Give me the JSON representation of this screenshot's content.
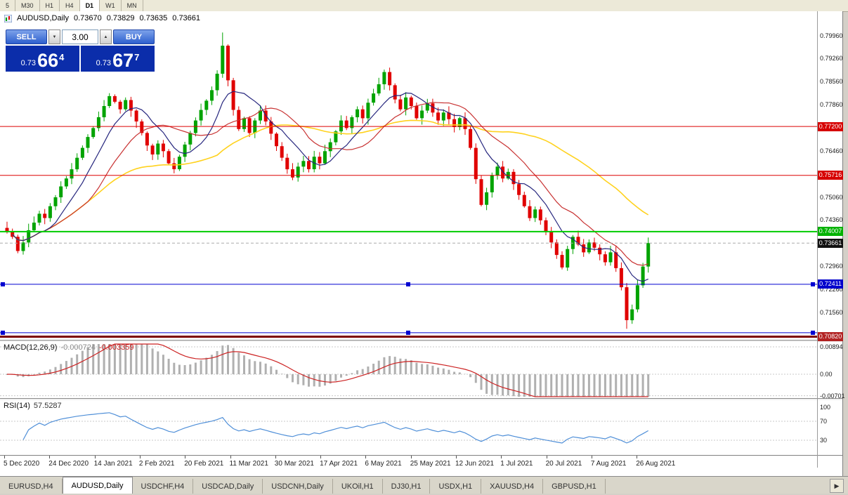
{
  "timeframe_bar": {
    "items": [
      "5",
      "M30",
      "H1",
      "H4",
      "D1",
      "W1",
      "MN"
    ],
    "active": "D1"
  },
  "header": {
    "symbol": "AUDUSD,Daily",
    "open": "0.73670",
    "high": "0.73829",
    "low": "0.73635",
    "close": "0.73661"
  },
  "trade_panel": {
    "sell_label": "SELL",
    "buy_label": "BUY",
    "volume": "3.00",
    "sell_price_prefix": "0.73",
    "sell_price_big": "66",
    "sell_price_sup": "4",
    "buy_price_prefix": "0.73",
    "buy_price_big": "67",
    "buy_price_sup": "7"
  },
  "icons": {
    "volume_down": "▼",
    "volume_up": "▲",
    "tab_scroll_right": "▶"
  },
  "price_axis": {
    "labels": [
      {
        "text": "0.79960",
        "price": 0.7996
      },
      {
        "text": "0.79260",
        "price": 0.7926
      },
      {
        "text": "0.78560",
        "price": 0.7856
      },
      {
        "text": "0.77860",
        "price": 0.7786
      },
      {
        "text": "0.76460",
        "price": 0.7646
      },
      {
        "text": "0.75060",
        "price": 0.7506
      },
      {
        "text": "0.74360",
        "price": 0.7436
      },
      {
        "text": "0.72960",
        "price": 0.7296
      },
      {
        "text": "0.72260",
        "price": 0.7226
      },
      {
        "text": "0.71560",
        "price": 0.7156
      }
    ],
    "tags": [
      {
        "text": "0.77200",
        "price": 0.772,
        "color": "#d60000"
      },
      {
        "text": "0.75716",
        "price": 0.75716,
        "color": "#d60000"
      },
      {
        "text": "0.74007",
        "price": 0.74007,
        "color": "#00b200"
      },
      {
        "text": "0.73661",
        "price": 0.73661,
        "color": "#111111"
      },
      {
        "text": "0.72411",
        "price": 0.72411,
        "color": "#0000cc"
      },
      {
        "text": "0.70820",
        "price": 0.7082,
        "color": "#b22222"
      }
    ]
  },
  "hlines": [
    {
      "price": 0.772,
      "color": "#dd0000",
      "w": 1,
      "handles": false
    },
    {
      "price": 0.75716,
      "color": "#dd0000",
      "w": 1,
      "handles": false
    },
    {
      "price": 0.74007,
      "color": "#00cc00",
      "w": 2,
      "handles": false
    },
    {
      "price": 0.72411,
      "color": "#0000d0",
      "w": 1,
      "handles": true
    },
    {
      "price": 0.7094,
      "color": "#0000d0",
      "w": 1,
      "handles": true
    },
    {
      "price": 0.7082,
      "color": "#7d0000",
      "w": 3,
      "handles": false
    }
  ],
  "indicators": {
    "macd": {
      "name": "MACD(12,26,9)",
      "value_main": "-0.000724",
      "value_signal": "-0.003359",
      "axis_labels": [
        {
          "text": "0.00894",
          "value": 0.00894
        },
        {
          "text": "0.00",
          "value": 0
        },
        {
          "text": "-0.00701",
          "value": -0.00701
        }
      ]
    },
    "rsi": {
      "name": "RSI(14)",
      "value": "57.5287",
      "axis_labels": [
        {
          "text": "100",
          "value": 100
        },
        {
          "text": "70",
          "value": 70
        },
        {
          "text": "30",
          "value": 30
        }
      ],
      "levels": [
        70,
        30
      ]
    }
  },
  "date_axis": [
    "5 Dec 2020",
    "24 Dec 2020",
    "14 Jan 2021",
    "2 Feb 2021",
    "20 Feb 2021",
    "11 Mar 2021",
    "30 Mar 2021",
    "17 Apr 2021",
    "6 May 2021",
    "25 May 2021",
    "12 Jun 2021",
    "1 Jul 2021",
    "20 Jul 2021",
    "7 Aug 2021",
    "26 Aug 2021"
  ],
  "bottom_tabs": {
    "tabs": [
      {
        "label": "EURUSD,H4",
        "active": false
      },
      {
        "label": "AUDUSD,Daily",
        "active": true
      },
      {
        "label": "USDCHF,H4",
        "active": false
      },
      {
        "label": "USDCAD,Daily",
        "active": false
      },
      {
        "label": "USDCNH,Daily",
        "active": false
      },
      {
        "label": "UKOil,H1",
        "active": false
      },
      {
        "label": "DJ30,H1",
        "active": false
      },
      {
        "label": "USDX,H1",
        "active": false
      },
      {
        "label": "XAUUSD,H4",
        "active": false
      },
      {
        "label": "GBPUSD,H1",
        "active": false
      }
    ]
  },
  "colors": {
    "bull": "#00a300",
    "bear": "#e00000",
    "macd_hist": "#b0b0b0",
    "macd_signal": "#cc2222",
    "rsi_line": "#4f8fd8",
    "trade_panel_blue": "#0b2daa",
    "button_blue": "#2d5fce"
  },
  "chart_data": {
    "type": "candlestick",
    "symbol": "AUDUSD",
    "timeframe": "Daily",
    "title": "AUDUSD,Daily",
    "ohlc_current": {
      "open": 0.7367,
      "high": 0.73829,
      "low": 0.73635,
      "close": 0.73661
    },
    "y_axis_range": [
      0.7081,
      0.8061
    ],
    "closes": [
      0.74,
      0.7385,
      0.7342,
      0.7368,
      0.7405,
      0.7428,
      0.7455,
      0.7442,
      0.7478,
      0.7505,
      0.7538,
      0.7562,
      0.759,
      0.7625,
      0.7655,
      0.7688,
      0.7715,
      0.7748,
      0.7782,
      0.7812,
      0.7795,
      0.7772,
      0.78,
      0.7768,
      0.7735,
      0.77,
      0.7662,
      0.7635,
      0.7668,
      0.7645,
      0.7608,
      0.759,
      0.7628,
      0.7665,
      0.77,
      0.7738,
      0.777,
      0.7798,
      0.783,
      0.788,
      0.7965,
      0.786,
      0.777,
      0.7712,
      0.7745,
      0.77,
      0.7738,
      0.7768,
      0.7735,
      0.7698,
      0.766,
      0.7625,
      0.759,
      0.7565,
      0.7598,
      0.7615,
      0.759,
      0.7628,
      0.7608,
      0.7645,
      0.7672,
      0.7705,
      0.7738,
      0.7715,
      0.7748,
      0.7772,
      0.7745,
      0.7792,
      0.782,
      0.7848,
      0.7885,
      0.7845,
      0.7802,
      0.7772,
      0.7808,
      0.7782,
      0.7745,
      0.7768,
      0.779,
      0.7762,
      0.7738,
      0.7762,
      0.7742,
      0.7718,
      0.7745,
      0.7712,
      0.7655,
      0.756,
      0.7482,
      0.752,
      0.7572,
      0.7598,
      0.7562,
      0.7582,
      0.7545,
      0.7512,
      0.7478,
      0.7442,
      0.7468,
      0.7435,
      0.7402,
      0.7368,
      0.733,
      0.7292,
      0.7348,
      0.7385,
      0.7362,
      0.7338,
      0.7368,
      0.7352,
      0.7332,
      0.7308,
      0.7338,
      0.729,
      0.7232,
      0.7132,
      0.7165,
      0.7238,
      0.7295,
      0.73661
    ],
    "extremes": {
      "high": 0.8005,
      "high_index": 40,
      "low": 0.7106,
      "low_index": 115
    },
    "moving_averages": [
      {
        "period": 40,
        "color": "#ffd21e"
      },
      {
        "period": 16,
        "color": "#c83232"
      },
      {
        "period": 8,
        "color": "#26267e"
      }
    ]
  }
}
